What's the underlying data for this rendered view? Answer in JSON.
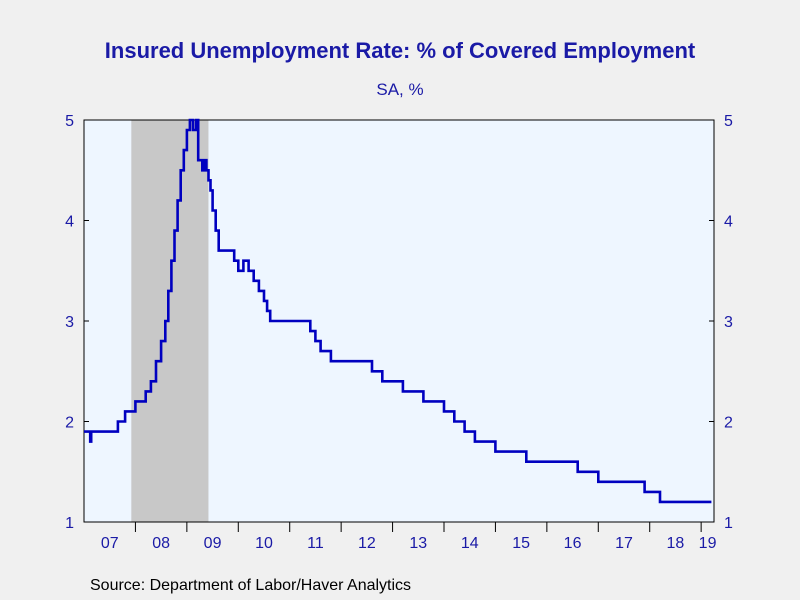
{
  "header": {
    "title": "Insured Unemployment Rate: % of Covered Employment",
    "subtitle": "SA, %"
  },
  "footer": {
    "source": "Source:  Department of Labor/Haver Analytics"
  },
  "colors": {
    "series": "#0000c0",
    "recession": "#c8c8c8",
    "plot_background": "#eef6ff",
    "text": "#1a1aa6"
  },
  "chart_data": {
    "type": "line",
    "title": "Insured Unemployment Rate: % of Covered Employment",
    "subtitle": "SA, %",
    "xlabel": "",
    "ylabel": "",
    "x_tick_labels": [
      "07",
      "08",
      "09",
      "10",
      "11",
      "12",
      "13",
      "14",
      "15",
      "16",
      "17",
      "18",
      "19"
    ],
    "xlim": [
      2007.0,
      2019.25
    ],
    "ylim": [
      1,
      5
    ],
    "y_ticks": [
      1,
      2,
      3,
      4,
      5
    ],
    "y_axis_both_sides": true,
    "grid": false,
    "recession_shading": [
      {
        "start": 2007.92,
        "end": 2009.42
      }
    ],
    "series": [
      {
        "x": [
          2007.0,
          2007.04,
          2007.08,
          2007.12,
          2007.14,
          2007.16,
          2007.2,
          2007.3,
          2007.4,
          2007.5,
          2007.6,
          2007.66,
          2007.7,
          2007.8,
          2007.86,
          2007.92,
          2008.0,
          2008.1,
          2008.2,
          2008.3,
          2008.4,
          2008.5,
          2008.58,
          2008.64,
          2008.7,
          2008.76,
          2008.82,
          2008.88,
          2008.94,
          2009.0,
          2009.06,
          2009.12,
          2009.18,
          2009.22,
          2009.26,
          2009.3,
          2009.34,
          2009.38,
          2009.42,
          2009.46,
          2009.5,
          2009.56,
          2009.62,
          2009.68,
          2009.74,
          2009.8,
          2009.86,
          2009.92,
          2010.0,
          2010.1,
          2010.2,
          2010.3,
          2010.4,
          2010.5,
          2010.56,
          2010.62,
          2010.7,
          2010.8,
          2010.9,
          2011.0,
          2011.1,
          2011.2,
          2011.3,
          2011.4,
          2011.5,
          2011.6,
          2011.7,
          2011.8,
          2011.9,
          2012.0,
          2012.2,
          2012.4,
          2012.6,
          2012.8,
          2012.9,
          2013.0,
          2013.2,
          2013.4,
          2013.6,
          2013.8,
          2013.9,
          2014.0,
          2014.2,
          2014.4,
          2014.6,
          2014.8,
          2015.0,
          2015.2,
          2015.4,
          2015.6,
          2015.8,
          2016.0,
          2016.2,
          2016.4,
          2016.6,
          2016.8,
          2017.0,
          2017.2,
          2017.4,
          2017.6,
          2017.8,
          2017.9,
          2018.0,
          2018.2,
          2018.4,
          2018.6,
          2018.8,
          2019.0,
          2019.2
        ],
        "values": [
          1.9,
          1.9,
          1.9,
          1.8,
          1.9,
          1.9,
          1.9,
          1.9,
          1.9,
          1.9,
          1.9,
          2.0,
          2.0,
          2.1,
          2.1,
          2.1,
          2.2,
          2.2,
          2.3,
          2.4,
          2.6,
          2.8,
          3.0,
          3.3,
          3.6,
          3.9,
          4.2,
          4.5,
          4.7,
          4.9,
          5.0,
          4.9,
          5.0,
          4.6,
          4.6,
          4.5,
          4.6,
          4.5,
          4.4,
          4.3,
          4.1,
          3.9,
          3.7,
          3.7,
          3.7,
          3.7,
          3.7,
          3.6,
          3.5,
          3.6,
          3.5,
          3.4,
          3.3,
          3.2,
          3.1,
          3.0,
          3.0,
          3.0,
          3.0,
          3.0,
          3.0,
          3.0,
          3.0,
          2.9,
          2.8,
          2.7,
          2.7,
          2.6,
          2.6,
          2.6,
          2.6,
          2.6,
          2.5,
          2.4,
          2.4,
          2.4,
          2.3,
          2.3,
          2.2,
          2.2,
          2.2,
          2.1,
          2.0,
          1.9,
          1.8,
          1.8,
          1.7,
          1.7,
          1.7,
          1.6,
          1.6,
          1.6,
          1.6,
          1.6,
          1.5,
          1.5,
          1.4,
          1.4,
          1.4,
          1.4,
          1.4,
          1.3,
          1.3,
          1.2,
          1.2,
          1.2,
          1.2,
          1.2,
          1.2
        ]
      }
    ]
  }
}
